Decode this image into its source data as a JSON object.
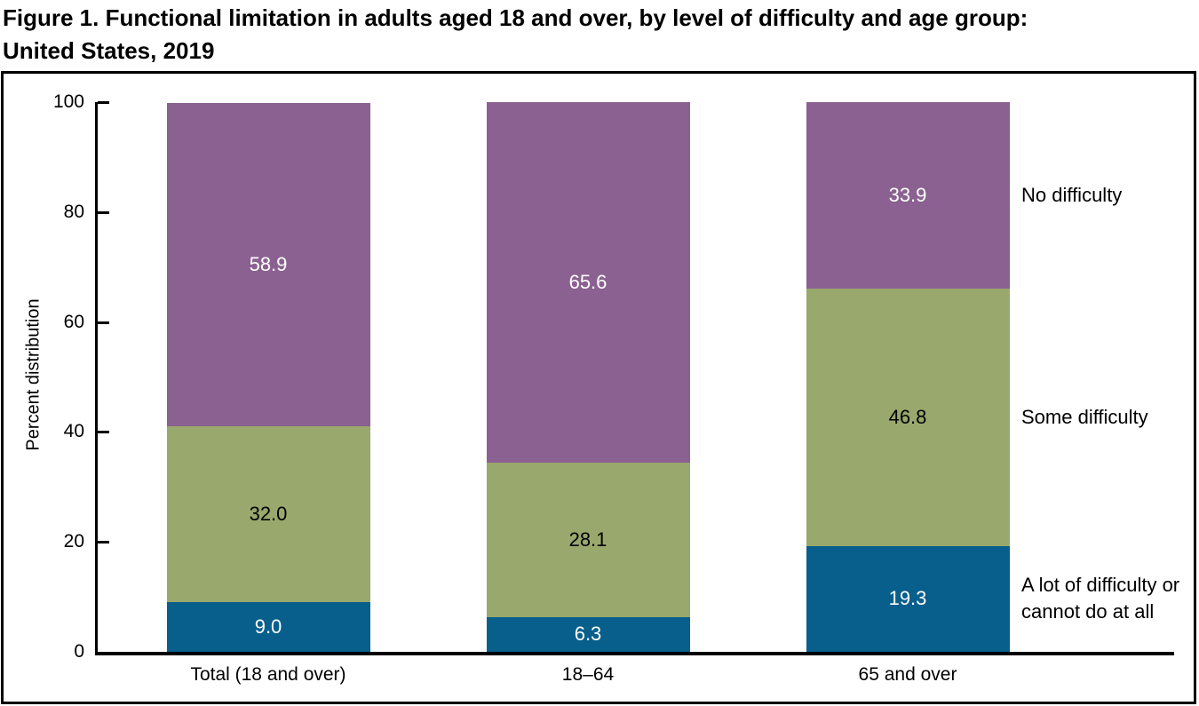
{
  "title": {
    "line1": "Figure 1. Functional limitation in adults aged 18 and over, by level of difficulty and age group:",
    "line2": "United States, 2019"
  },
  "chart_data": {
    "type": "bar",
    "stacked": true,
    "title": "Figure 1. Functional limitation in adults aged 18 and over, by level of difficulty and age group: United States, 2019",
    "ylabel": "Percent distribution",
    "xlabel": "",
    "ylim": [
      0,
      100
    ],
    "yticks": [
      0,
      20,
      40,
      60,
      80,
      100
    ],
    "grid": false,
    "legend_position": "right",
    "categories": [
      "Total (18 and over)",
      "18–64",
      "65 and over"
    ],
    "series": [
      {
        "name": "A lot of difficulty or cannot do at all",
        "legend_lines": [
          "A lot of difficulty or",
          "cannot do at all"
        ],
        "color": "#085F8C",
        "label_color": "#ffffff",
        "values": [
          9.0,
          6.3,
          19.3
        ]
      },
      {
        "name": "Some difficulty",
        "legend_lines": [
          "Some difficulty"
        ],
        "color": "#99A86C",
        "label_color": "#000000",
        "values": [
          32.0,
          28.1,
          46.8
        ]
      },
      {
        "name": "No difficulty",
        "legend_lines": [
          "No difficulty"
        ],
        "color": "#8A6190",
        "label_color": "#ffffff",
        "values": [
          58.9,
          65.6,
          33.9
        ]
      }
    ],
    "axis_color": "#000000",
    "frame_color": "#000000"
  }
}
